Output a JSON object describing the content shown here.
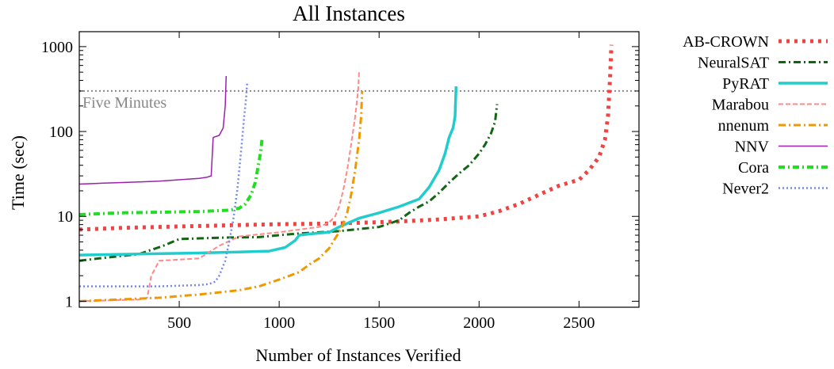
{
  "chart_data": {
    "type": "line",
    "title": "All Instances",
    "xlabel": "Number of Instances Verified",
    "ylabel": "Time (sec)",
    "xlim": [
      0,
      2800
    ],
    "ylim": [
      0.85,
      1500
    ],
    "yscale": "log",
    "grid": false,
    "legend_position": "outside-right",
    "x_ticks": [
      500,
      1000,
      1500,
      2000,
      2500
    ],
    "x_tick_labels": [
      "500",
      "1000",
      "1500",
      "2000",
      "2500"
    ],
    "y_ticks": [
      1,
      10,
      100,
      1000
    ],
    "y_tick_labels": [
      "1",
      "10",
      "100",
      "1000"
    ],
    "reference_lines": [
      {
        "y": 300,
        "label": "Five Minutes",
        "color": "#888888"
      }
    ],
    "series": [
      {
        "name": "AB-CROWN",
        "color": "#ee4444",
        "style": "dotted-thick",
        "x": [
          0,
          200,
          500,
          800,
          1000,
          1200,
          1400,
          1600,
          1800,
          2000,
          2100,
          2200,
          2300,
          2400,
          2500,
          2550,
          2600,
          2630,
          2645,
          2655,
          2662
        ],
        "y": [
          7.0,
          7.3,
          7.6,
          7.9,
          8.1,
          8.2,
          8.4,
          8.7,
          9.2,
          10,
          11.5,
          14,
          18,
          23,
          27,
          35,
          50,
          80,
          150,
          400,
          1050
        ]
      },
      {
        "name": "NeuralSAT",
        "color": "#116611",
        "style": "dash-dot",
        "x": [
          0,
          100,
          300,
          420,
          500,
          700,
          900,
          1000,
          1100,
          1300,
          1500,
          1600,
          1650,
          1700,
          1750,
          1800,
          1850,
          1900,
          1950,
          2000,
          2030,
          2060,
          2080,
          2090
        ],
        "y": [
          3.0,
          3.2,
          3.6,
          4.5,
          5.4,
          5.6,
          5.7,
          6.0,
          6.3,
          6.7,
          7.5,
          9,
          11,
          13,
          15,
          19,
          25,
          32,
          40,
          55,
          70,
          95,
          130,
          210
        ]
      },
      {
        "name": "PyRAT",
        "color": "#22cccc",
        "style": "solid-thick",
        "x": [
          0,
          300,
          600,
          800,
          950,
          1030,
          1080,
          1100,
          1150,
          1250,
          1300,
          1400,
          1500,
          1600,
          1700,
          1750,
          1800,
          1830,
          1850,
          1870,
          1880,
          1885
        ],
        "y": [
          3.5,
          3.6,
          3.7,
          3.8,
          3.9,
          4.3,
          5.2,
          6.0,
          6.2,
          6.5,
          7.5,
          9.5,
          11,
          13,
          16,
          22,
          35,
          55,
          85,
          110,
          150,
          340
        ]
      },
      {
        "name": "Marabou",
        "color": "#ff8888",
        "style": "impulse-dashed",
        "x": [
          0,
          300,
          340,
          360,
          400,
          600,
          700,
          800,
          1000,
          1100,
          1200,
          1250,
          1280,
          1300,
          1320,
          1340,
          1360,
          1380,
          1395,
          1400
        ],
        "y": [
          1.0,
          1.05,
          1.1,
          2.0,
          3.0,
          3.2,
          4.5,
          5.8,
          6.5,
          7.0,
          7.5,
          8.5,
          10,
          13,
          20,
          35,
          70,
          150,
          300,
          520
        ]
      },
      {
        "name": "nnenum",
        "color": "#ee9900",
        "style": "dash-dot",
        "x": [
          0,
          200,
          400,
          600,
          800,
          900,
          1000,
          1100,
          1150,
          1200,
          1250,
          1280,
          1300,
          1320,
          1340,
          1360,
          1380,
          1400,
          1410,
          1415
        ],
        "y": [
          1.0,
          1.05,
          1.1,
          1.2,
          1.35,
          1.5,
          1.8,
          2.2,
          2.7,
          3.2,
          4.2,
          5.5,
          6.5,
          8,
          11,
          18,
          35,
          80,
          150,
          300
        ]
      },
      {
        "name": "NNV",
        "color": "#9922aa",
        "style": "solid-thin",
        "x": [
          0,
          100,
          200,
          300,
          400,
          500,
          600,
          640,
          660,
          670,
          700,
          720,
          730,
          735
        ],
        "y": [
          24,
          24.5,
          25,
          25.5,
          26,
          27,
          28,
          29,
          30,
          85,
          90,
          110,
          200,
          450
        ]
      },
      {
        "name": "Cora",
        "color": "#22dd22",
        "style": "dash-dot-thick",
        "x": [
          0,
          200,
          400,
          600,
          750,
          800,
          830,
          860,
          880,
          900,
          910,
          915
        ],
        "y": [
          10.5,
          11,
          11.2,
          11.4,
          11.8,
          12.5,
          14,
          18,
          25,
          45,
          65,
          85
        ]
      },
      {
        "name": "Never2",
        "color": "#7788ee",
        "style": "dotted",
        "x": [
          0,
          200,
          400,
          600,
          650,
          680,
          700,
          730,
          750,
          770,
          790,
          810,
          825,
          835,
          840
        ],
        "y": [
          1.5,
          1.5,
          1.5,
          1.55,
          1.6,
          1.7,
          2.0,
          3.0,
          5.0,
          9,
          20,
          60,
          150,
          250,
          380
        ]
      }
    ]
  }
}
